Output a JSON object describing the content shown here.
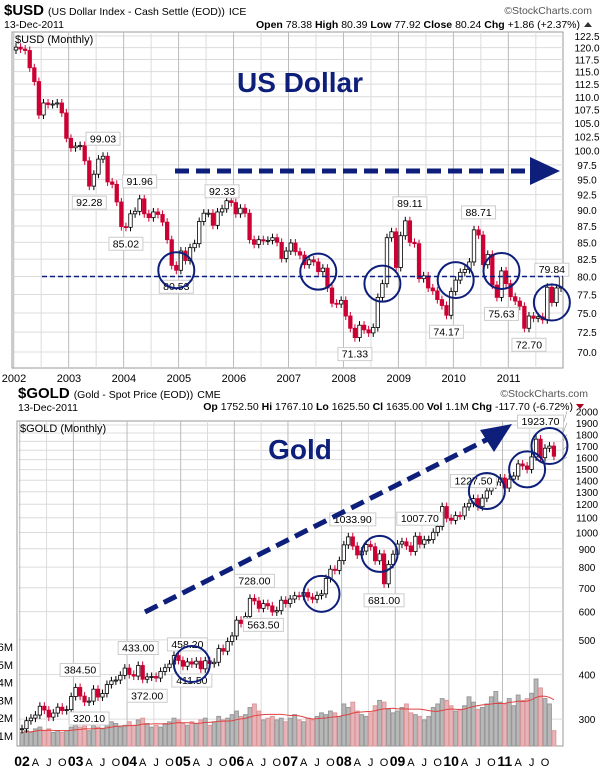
{
  "watermark": "©StockCharts.com",
  "colors": {
    "up": "#ffffff",
    "down": "#cc0033",
    "outline": "#000000",
    "navy": "#0d1f7a",
    "grid": "#dcdcdc",
    "volume": "#b8b8b8",
    "volume_down": "#e8b4bc",
    "ma": "#e04040"
  },
  "chart_data": [
    {
      "type": "candlestick",
      "symbol": "$USD",
      "name": "(US Dollar Index - Cash Settle (EOD))",
      "exchange": "ICE",
      "date": "13-Dec-2011",
      "quote": {
        "open_label": "Open",
        "open": "78.38",
        "high_label": "High",
        "high": "80.39",
        "low_label": "Low",
        "low": "77.92",
        "close_label": "Close",
        "close": "80.24",
        "chg_label": "Chg",
        "chg": "+1.86 (+2.37%)"
      },
      "panel_label": "$USD (Monthly)",
      "annotation_title": "US Dollar",
      "scale": "log",
      "ylim": [
        70,
        122.5
      ],
      "yticks": [
        "122.5",
        "120.0",
        "117.5",
        "115.0",
        "112.5",
        "110.0",
        "107.5",
        "105.0",
        "102.5",
        "100.0",
        "97.5",
        "95.0",
        "92.5",
        "90.0",
        "87.5",
        "85.0",
        "82.5",
        "80.0",
        "77.5",
        "75.0",
        "72.5",
        "70.0"
      ],
      "xticks": [
        "2002",
        "2003",
        "2004",
        "2005",
        "2006",
        "2007",
        "2008",
        "2009",
        "2010",
        "2011"
      ],
      "start": "2002-01",
      "support_line": 80,
      "trend_arrow": "horizontal",
      "circles": [
        "2004-12",
        "2007-07",
        "2008-09",
        "2010-01",
        "2010-11",
        "2011-10"
      ],
      "closes": [
        120.1,
        119.7,
        119.4,
        115.8,
        113.0,
        106.5,
        108.8,
        108.5,
        108.6,
        108.8,
        106.9,
        102.2,
        100.5,
        100.8,
        100.9,
        98.2,
        93.9,
        95.9,
        98.5,
        99.0,
        94.6,
        94.2,
        91.3,
        87.4,
        87.3,
        89.4,
        89.8,
        91.8,
        89.4,
        88.8,
        89.7,
        89.3,
        88.1,
        85.4,
        81.6,
        80.9,
        83.7,
        82.3,
        84.2,
        84.8,
        88.2,
        89.5,
        89.5,
        87.6,
        89.7,
        90.2,
        91.5,
        91.2,
        89.4,
        90.3,
        89.5,
        85.4,
        84.7,
        85.4,
        85.2,
        85.3,
        85.7,
        85.0,
        82.6,
        83.7,
        84.9,
        83.6,
        83.1,
        81.7,
        82.4,
        82.1,
        80.7,
        81.2,
        78.4,
        76.3,
        76.2,
        76.7,
        74.6,
        73.0,
        71.8,
        73.4,
        72.8,
        72.4,
        73.1,
        77.1,
        79.0,
        85.7,
        86.6,
        81.3,
        86.0,
        88.3,
        85.0,
        84.8,
        79.7,
        80.1,
        78.4,
        78.0,
        76.8,
        76.0,
        74.7,
        77.9,
        79.5,
        80.6,
        81.0,
        82.1,
        86.9,
        86.1,
        81.7,
        83.2,
        78.8,
        77.1,
        80.8,
        79.0,
        77.2,
        76.6,
        75.9,
        73.0,
        74.6,
        74.3,
        74.5,
        74.1,
        78.5,
        76.4,
        78.4,
        80.2
      ],
      "annotations": [
        {
          "date": "2003-08",
          "value": "99.03",
          "pos": "above"
        },
        {
          "date": "2003-05",
          "value": "92.28",
          "pos": "below"
        },
        {
          "date": "2004-04",
          "value": "91.96",
          "pos": "above"
        },
        {
          "date": "2004-01",
          "value": "85.02",
          "pos": "below"
        },
        {
          "date": "2004-12",
          "value": "80.53",
          "pos": "below"
        },
        {
          "date": "2005-10",
          "value": "92.33",
          "pos": "above"
        },
        {
          "date": "2008-03",
          "value": "71.33",
          "pos": "below"
        },
        {
          "date": "2009-03",
          "value": "89.11",
          "pos": "above"
        },
        {
          "date": "2009-11",
          "value": "74.17",
          "pos": "below"
        },
        {
          "date": "2010-06",
          "value": "88.71",
          "pos": "above"
        },
        {
          "date": "2010-11",
          "value": "75.63",
          "pos": "below"
        },
        {
          "date": "2011-05",
          "value": "72.70",
          "pos": "below"
        },
        {
          "date": "2011-10",
          "value": "79.84",
          "pos": "above"
        }
      ]
    },
    {
      "type": "candlestick",
      "symbol": "$GOLD",
      "name": "(Gold - Spot Price (EOD))",
      "exchange": "CME",
      "date": "13-Dec-2011",
      "quote": {
        "open_label": "Op",
        "open": "1752.50",
        "high_label": "Hi",
        "high": "1767.10",
        "low_label": "Lo",
        "low": "1625.50",
        "close_label": "Cl",
        "close": "1635.00",
        "vol_label": "Vol",
        "vol": "1.1M",
        "chg_label": "Chg",
        "chg": "-117.70 (-6.72%)"
      },
      "panel_label": "$GOLD (Monthly)",
      "annotation_title": "Gold",
      "scale": "log",
      "ylim": [
        254,
        2000
      ],
      "yticks": [
        "2000",
        "1900",
        "1800",
        "1700",
        "1600",
        "1500",
        "1400",
        "1300",
        "1200",
        "1100",
        "1000",
        "900",
        "800",
        "700",
        "600",
        "500",
        "400",
        "300"
      ],
      "volume_ticks": [
        "6M",
        "5M",
        "4M",
        "3M",
        "2M",
        "1M"
      ],
      "xticks": [
        "02",
        "A",
        "J",
        "O",
        "03",
        "A",
        "J",
        "O",
        "04",
        "A",
        "J",
        "O",
        "05",
        "A",
        "J",
        "O",
        "06",
        "A",
        "J",
        "O",
        "07",
        "A",
        "J",
        "O",
        "08",
        "A",
        "J",
        "O",
        "09",
        "A",
        "J",
        "O",
        "10",
        "A",
        "J",
        "O",
        "11",
        "A",
        "J",
        "O"
      ],
      "start": "2002-01",
      "trend_arrow": "diagonal-up",
      "circles": [
        "2005-03",
        "2007-08",
        "2008-09",
        "2010-09",
        "2011-06",
        "2011-11"
      ],
      "closes": [
        282,
        297,
        302,
        308,
        326,
        318,
        304,
        312,
        324,
        317,
        319,
        347,
        368,
        348,
        335,
        337,
        364,
        346,
        354,
        375,
        384,
        386,
        398,
        417,
        400,
        396,
        424,
        388,
        394,
        395,
        391,
        408,
        418,
        428,
        452,
        438,
        422,
        434,
        428,
        436,
        415,
        437,
        429,
        433,
        473,
        465,
        495,
        513,
        568,
        556,
        582,
        654,
        643,
        613,
        632,
        623,
        599,
        604,
        646,
        632,
        651,
        665,
        663,
        679,
        659,
        650,
        666,
        673,
        743,
        789,
        783,
        834,
        923,
        972,
        916,
        865,
        887,
        925,
        912,
        833,
        871,
        718,
        814,
        869,
        928,
        942,
        917,
        884,
        976,
        927,
        954,
        955,
        1001,
        1040,
        1182,
        1096,
        1081,
        1116,
        1113,
        1179,
        1207,
        1244,
        1181,
        1248,
        1307,
        1358,
        1385,
        1421,
        1332,
        1411,
        1439,
        1556,
        1536,
        1502,
        1628,
        1826,
        1620,
        1722,
        1746,
        1635
      ],
      "volume_m": [
        1.2,
        1.3,
        1.2,
        1.4,
        1.5,
        1.3,
        1.4,
        1.2,
        1.3,
        1.2,
        1.3,
        1.5,
        1.6,
        1.5,
        1.7,
        1.3,
        1.6,
        1.5,
        1.4,
        1.6,
        1.8,
        1.7,
        1.5,
        1.6,
        1.8,
        1.6,
        1.9,
        2.0,
        1.7,
        1.5,
        1.6,
        1.5,
        1.7,
        1.8,
        2.0,
        1.9,
        1.7,
        1.6,
        1.8,
        1.7,
        1.9,
        2.0,
        1.6,
        1.8,
        2.1,
        1.9,
        2.0,
        2.2,
        2.4,
        2.1,
        2.2,
        2.6,
        2.8,
        2.4,
        1.9,
        2.0,
        2.1,
        1.9,
        2.0,
        1.8,
        2.0,
        2.2,
        1.9,
        1.8,
        2.0,
        1.9,
        2.1,
        2.3,
        2.2,
        2.4,
        2.3,
        2.1,
        2.8,
        2.6,
        2.9,
        2.4,
        2.2,
        2.1,
        2.3,
        2.7,
        3.0,
        2.9,
        2.5,
        2.3,
        2.4,
        2.6,
        2.8,
        2.3,
        2.2,
        2.1,
        1.9,
        2.1,
        2.6,
        2.8,
        3.1,
        3.0,
        2.7,
        2.4,
        2.5,
        2.7,
        3.2,
        2.9,
        2.5,
        2.6,
        2.8,
        3.2,
        3.5,
        2.9,
        2.8,
        3.1,
        2.7,
        3.3,
        3.0,
        3.1,
        3.4,
        4.2,
        3.7,
        3.1,
        2.8,
        1.3
      ],
      "annotations": [
        {
          "date": "2003-02",
          "value": "384.50",
          "pos": "above"
        },
        {
          "date": "2003-04",
          "value": "320.10",
          "pos": "below"
        },
        {
          "date": "2004-03",
          "value": "433.00",
          "pos": "above"
        },
        {
          "date": "2004-05",
          "value": "372.00",
          "pos": "below"
        },
        {
          "date": "2005-02",
          "value": "458.20",
          "pos": "above"
        },
        {
          "date": "2005-03",
          "value": "411.50",
          "pos": "below"
        },
        {
          "date": "2006-05",
          "value": "728.00",
          "pos": "above"
        },
        {
          "date": "2006-07",
          "value": "563.50",
          "pos": "below"
        },
        {
          "date": "2008-03",
          "value": "1033.90",
          "pos": "above"
        },
        {
          "date": "2008-10",
          "value": "681.00",
          "pos": "below"
        },
        {
          "date": "2009-06",
          "value": "1007.70",
          "pos": "above"
        },
        {
          "date": "2010-06",
          "value": "1227.50",
          "pos": "above"
        },
        {
          "date": "2011-09",
          "value": "1923.70",
          "pos": "above"
        }
      ]
    }
  ]
}
